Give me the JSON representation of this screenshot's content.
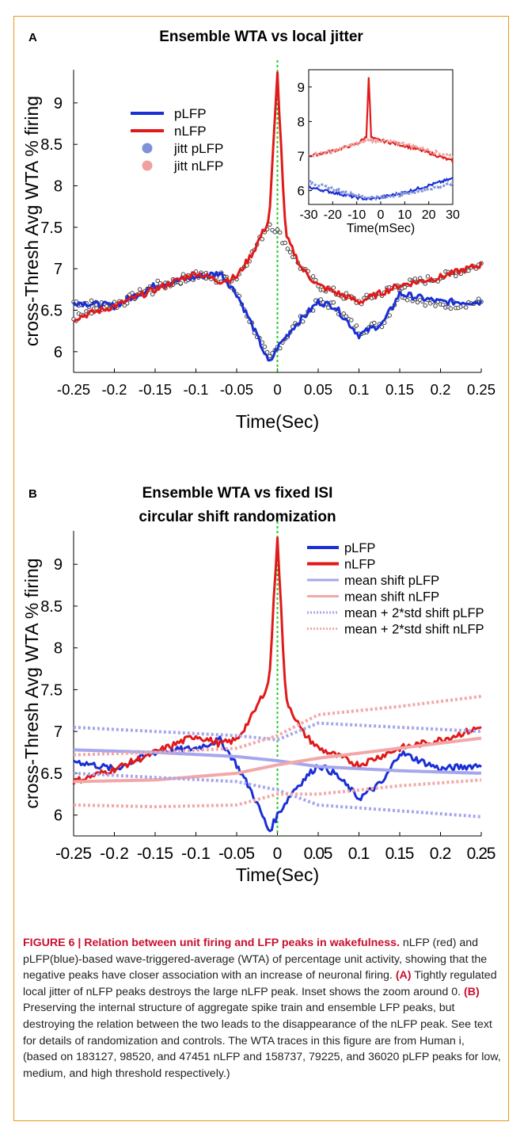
{
  "panels": [
    {
      "letter": "A",
      "title_lines": [
        "Ensemble WTA vs local jitter"
      ],
      "ylabel": "cross-Thresh Avg WTA % firing",
      "xlabel": "Time(Sec)",
      "xticks": [
        "-0.25",
        "-0.2",
        "-0.15",
        "-0.1",
        "-0.05",
        "0",
        "0.05",
        "0.1",
        "0.15",
        "0.2",
        "0.25"
      ],
      "yticks": [
        "6",
        "6.5",
        "7",
        "7.5",
        "8",
        "8.5",
        "9"
      ],
      "legend": [
        "pLFP",
        "nLFP",
        "jitt pLFP",
        "jitt nLFP"
      ],
      "inset": {
        "xlabel": "Time(mSec)",
        "xticks": [
          "-30",
          "-20",
          "-10",
          "0",
          "10",
          "20",
          "30"
        ],
        "yticks": [
          "6",
          "7",
          "8",
          "9"
        ]
      }
    },
    {
      "letter": "B",
      "title_lines": [
        "Ensemble WTA vs fixed ISI",
        "circular shift randomization"
      ],
      "ylabel": "cross-Thresh Avg WTA % firing",
      "xlabel": "Time(Sec)",
      "xticks": [
        "-0.25",
        "-0.2",
        "-0.15",
        "-0.1",
        "-0.05",
        "0",
        "0.05",
        "0.1",
        "0.15",
        "0.2",
        "0.25"
      ],
      "yticks": [
        "6",
        "6.5",
        "7",
        "7.5",
        "8",
        "8.5",
        "9"
      ],
      "legend": [
        "pLFP",
        "nLFP",
        "mean shift pLFP",
        "mean shift nLFP",
        "mean + 2*std shift pLFP",
        "mean + 2*std shift nLFP"
      ]
    }
  ],
  "caption": {
    "lead": "FIGURE 6 | Relation between unit firing and LFP peaks in wakefulness.",
    "t1": " nLFP (red) and pLFP(blue)-based wave-triggered-average (WTA) of percentage unit activity, showing that the negative peaks have closer association with an increase of neuronal firing. ",
    "a": "(A)",
    "t2": " Tightly regulated local jitter of nLFP peaks destroys the large nLFP peak. Inset shows the zoom around 0. ",
    "b": "(B)",
    "t3": " Preserving the internal structure of aggregate spike train and ensemble LFP peaks, but destroying the relation between the two leads to the disappearance of the nLFP peak. See text for details of randomization and controls. The WTA traces in this figure are from Human i, (based on 183127, 98520, and 47451 nLFP and 158737, 79225, and 36020 pLFP peaks for low, medium, and high threshold respectively.)"
  },
  "colors": {
    "pLFP": "#1a2fd6",
    "nLFP": "#e01a1a",
    "jitt_pLFP": "#7f92d8",
    "jitt_nLFP": "#f0a0a0",
    "mean_shift_pLFP": "#a6a6ee",
    "mean_shift_nLFP": "#f2a8a8",
    "zero_line": "#22cc22",
    "frame": "#e8951a"
  },
  "chart_data": [
    {
      "type": "line",
      "title": "Ensemble WTA vs local jitter",
      "xlabel": "Time(Sec)",
      "ylabel": "cross-Thresh Avg WTA % firing",
      "xlim": [
        -0.25,
        0.25
      ],
      "ylim": [
        5.75,
        9.4
      ],
      "series": [
        {
          "name": "pLFP",
          "x": [
            -0.25,
            -0.2,
            -0.15,
            -0.1,
            -0.07,
            -0.05,
            -0.03,
            -0.01,
            0,
            0.02,
            0.05,
            0.07,
            0.1,
            0.13,
            0.15,
            0.2,
            0.25
          ],
          "y": [
            6.6,
            6.55,
            6.8,
            6.9,
            6.95,
            6.7,
            6.3,
            5.85,
            6.05,
            6.3,
            6.6,
            6.55,
            6.2,
            6.35,
            6.7,
            6.6,
            6.6
          ]
        },
        {
          "name": "nLFP",
          "x": [
            -0.25,
            -0.2,
            -0.15,
            -0.1,
            -0.07,
            -0.05,
            -0.03,
            -0.01,
            0,
            0.01,
            0.03,
            0.05,
            0.1,
            0.15,
            0.2,
            0.25
          ],
          "y": [
            6.4,
            6.55,
            6.75,
            6.95,
            6.85,
            6.9,
            7.2,
            7.6,
            9.35,
            7.4,
            7.0,
            6.8,
            6.6,
            6.8,
            6.9,
            7.05
          ]
        },
        {
          "name": "jitt pLFP",
          "x": [
            -0.25,
            -0.2,
            -0.15,
            -0.1,
            -0.07,
            -0.05,
            -0.03,
            -0.01,
            0,
            0.02,
            0.05,
            0.07,
            0.1,
            0.13,
            0.15,
            0.2,
            0.25
          ],
          "y": [
            6.6,
            6.55,
            6.8,
            6.9,
            6.95,
            6.7,
            6.3,
            5.9,
            6.05,
            6.3,
            6.6,
            6.55,
            6.25,
            6.35,
            6.7,
            6.55,
            6.6
          ]
        },
        {
          "name": "jitt nLFP",
          "x": [
            -0.25,
            -0.2,
            -0.15,
            -0.1,
            -0.07,
            -0.05,
            -0.03,
            -0.01,
            0,
            0.01,
            0.03,
            0.05,
            0.1,
            0.15,
            0.2,
            0.25
          ],
          "y": [
            6.4,
            6.55,
            6.75,
            6.95,
            6.85,
            6.9,
            7.2,
            7.55,
            7.45,
            7.3,
            7.0,
            6.8,
            6.6,
            6.8,
            6.9,
            7.05
          ]
        }
      ],
      "inset": {
        "xlabel": "Time(mSec)",
        "xlim": [
          -30,
          30
        ],
        "ylim": [
          5.6,
          9.5
        ],
        "series": [
          {
            "name": "nLFP",
            "x": [
              -30,
              -20,
              -10,
              -6,
              -5,
              -4,
              -3,
              0,
              10,
              20,
              30
            ],
            "y": [
              7.0,
              7.15,
              7.35,
              7.55,
              9.3,
              7.55,
              7.5,
              7.45,
              7.3,
              7.1,
              6.85
            ]
          },
          {
            "name": "pLFP",
            "x": [
              -30,
              -20,
              -10,
              -5,
              0,
              10,
              20,
              30
            ],
            "y": [
              6.1,
              5.95,
              5.8,
              5.75,
              5.8,
              5.95,
              6.15,
              6.35
            ]
          },
          {
            "name": "jitt nLFP",
            "x": [
              -30,
              -20,
              -10,
              -5,
              0,
              10,
              20,
              30
            ],
            "y": [
              7.0,
              7.15,
              7.35,
              7.45,
              7.45,
              7.35,
              7.15,
              7.0
            ]
          },
          {
            "name": "jitt pLFP",
            "x": [
              -30,
              -20,
              -10,
              -5,
              0,
              10,
              20,
              30
            ],
            "y": [
              6.25,
              6.05,
              5.85,
              5.8,
              5.8,
              5.9,
              6.05,
              6.2
            ]
          }
        ]
      },
      "legend_position": "top-left"
    },
    {
      "type": "line",
      "title": "Ensemble WTA vs fixed ISI circular shift randomization",
      "xlabel": "Time(Sec)",
      "ylabel": "cross-Thresh Avg WTA % firing",
      "xlim": [
        -0.25,
        0.25
      ],
      "ylim": [
        5.75,
        9.4
      ],
      "series": [
        {
          "name": "pLFP",
          "x": [
            -0.25,
            -0.2,
            -0.15,
            -0.1,
            -0.07,
            -0.05,
            -0.03,
            -0.01,
            0,
            0.02,
            0.05,
            0.07,
            0.1,
            0.13,
            0.15,
            0.2,
            0.25
          ],
          "y": [
            6.65,
            6.55,
            6.75,
            6.8,
            6.9,
            6.6,
            6.25,
            5.8,
            6.0,
            6.3,
            6.6,
            6.5,
            6.2,
            6.4,
            6.75,
            6.55,
            6.6
          ]
        },
        {
          "name": "nLFP",
          "x": [
            -0.25,
            -0.2,
            -0.15,
            -0.1,
            -0.07,
            -0.05,
            -0.03,
            -0.01,
            0,
            0.01,
            0.03,
            0.05,
            0.1,
            0.15,
            0.2,
            0.25
          ],
          "y": [
            6.4,
            6.55,
            6.75,
            6.95,
            6.85,
            6.9,
            7.2,
            7.6,
            9.35,
            7.4,
            7.0,
            6.8,
            6.6,
            6.8,
            6.9,
            7.05
          ]
        },
        {
          "name": "mean shift pLFP",
          "x": [
            -0.25,
            -0.15,
            -0.05,
            0,
            0.05,
            0.15,
            0.25
          ],
          "y": [
            6.78,
            6.75,
            6.7,
            6.65,
            6.58,
            6.53,
            6.5
          ]
        },
        {
          "name": "mean shift nLFP",
          "x": [
            -0.25,
            -0.15,
            -0.05,
            0,
            0.05,
            0.15,
            0.25
          ],
          "y": [
            6.4,
            6.42,
            6.5,
            6.6,
            6.68,
            6.8,
            6.92
          ]
        },
        {
          "name": "mean + 2*std shift pLFP",
          "x": [
            -0.25,
            -0.15,
            -0.05,
            0,
            0.05,
            0.15,
            0.25
          ],
          "y": [
            7.05,
            7.0,
            6.95,
            6.9,
            7.1,
            7.05,
            7.0
          ]
        },
        {
          "name": "mean + 2*std shift pLFP (lower)",
          "x": [
            -0.25,
            -0.15,
            -0.05,
            0,
            0.05,
            0.15,
            0.25
          ],
          "y": [
            6.5,
            6.45,
            6.4,
            6.3,
            6.12,
            6.05,
            5.98
          ]
        },
        {
          "name": "mean + 2*std shift nLFP",
          "x": [
            -0.25,
            -0.15,
            -0.05,
            0,
            0.05,
            0.15,
            0.25
          ],
          "y": [
            6.72,
            6.75,
            6.8,
            6.95,
            7.2,
            7.3,
            7.42
          ]
        },
        {
          "name": "mean + 2*std shift nLFP (lower)",
          "x": [
            -0.25,
            -0.15,
            -0.05,
            0,
            0.05,
            0.15,
            0.25
          ],
          "y": [
            6.12,
            6.1,
            6.12,
            6.25,
            6.25,
            6.35,
            6.42
          ]
        }
      ],
      "legend_position": "top-right"
    }
  ]
}
